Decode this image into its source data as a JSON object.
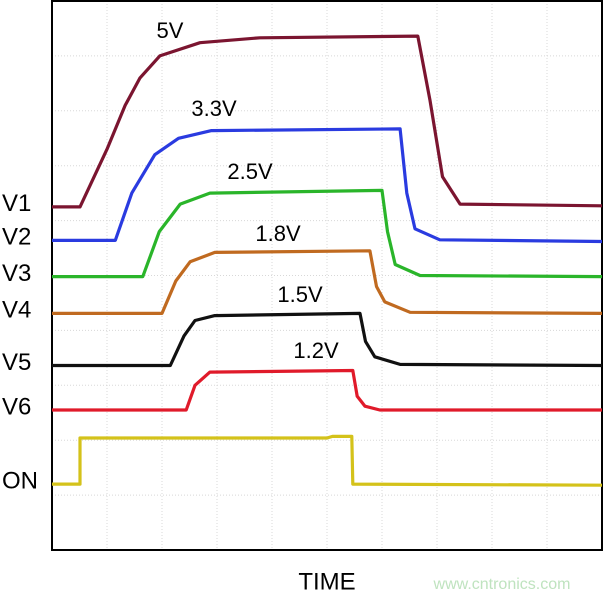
{
  "chart_data": {
    "type": "line",
    "x_label": "TIME",
    "watermark": "www.cntronics.com",
    "xlim": [
      0,
      10
    ],
    "ylim": [
      0,
      10
    ],
    "series": [
      {
        "name": "V1",
        "annotation": "5V",
        "color": "#7b1530",
        "x": [
          0,
          0.51,
          1.0,
          1.33,
          1.6,
          1.96,
          2.69,
          3.78,
          6.65,
          6.87,
          7.1,
          7.42,
          10
        ],
        "values": [
          6.25,
          6.25,
          7.3,
          8.1,
          8.6,
          9.0,
          9.24,
          9.33,
          9.36,
          8.2,
          6.8,
          6.3,
          6.27
        ]
      },
      {
        "name": "V2",
        "annotation": "3.3V",
        "color": "#2a3be0",
        "x": [
          0,
          1.15,
          1.45,
          1.87,
          2.3,
          2.9,
          6.33,
          6.45,
          6.6,
          7.05,
          10
        ],
        "values": [
          5.64,
          5.64,
          6.5,
          7.2,
          7.5,
          7.64,
          7.67,
          6.5,
          5.85,
          5.65,
          5.62
        ]
      },
      {
        "name": "V3",
        "annotation": "2.5V",
        "color": "#2ab52a",
        "x": [
          0,
          1.65,
          1.95,
          2.33,
          2.87,
          6.0,
          6.1,
          6.24,
          6.69,
          10
        ],
        "values": [
          4.98,
          4.98,
          5.8,
          6.3,
          6.5,
          6.55,
          5.8,
          5.2,
          5.0,
          4.98
        ]
      },
      {
        "name": "V4",
        "annotation": "1.8V",
        "color": "#c06a20",
        "x": [
          0,
          2.0,
          2.25,
          2.51,
          2.96,
          5.78,
          5.9,
          6.05,
          6.51,
          10
        ],
        "values": [
          4.31,
          4.31,
          4.9,
          5.25,
          5.42,
          5.45,
          4.8,
          4.52,
          4.33,
          4.31
        ]
      },
      {
        "name": "V5",
        "annotation": "1.5V",
        "color": "#111111",
        "x": [
          0,
          2.15,
          2.4,
          2.6,
          2.96,
          5.6,
          5.7,
          5.87,
          6.33,
          10
        ],
        "values": [
          3.36,
          3.36,
          3.9,
          4.18,
          4.27,
          4.31,
          3.8,
          3.52,
          3.38,
          3.36
        ]
      },
      {
        "name": "V6",
        "annotation": "1.2V",
        "color": "#e01a2a",
        "x": [
          0,
          2.44,
          2.6,
          2.87,
          5.47,
          5.55,
          5.69,
          5.96,
          10
        ],
        "values": [
          2.55,
          2.55,
          3.0,
          3.24,
          3.27,
          2.8,
          2.62,
          2.55,
          2.55
        ]
      },
      {
        "name": "ON",
        "color": "#d4c21a",
        "x": [
          0,
          0.51,
          0.51,
          5.0,
          5.1,
          5.45,
          5.47,
          10
        ],
        "values": [
          1.2,
          1.2,
          2.04,
          2.04,
          2.07,
          2.07,
          1.2,
          1.18
        ]
      }
    ]
  }
}
